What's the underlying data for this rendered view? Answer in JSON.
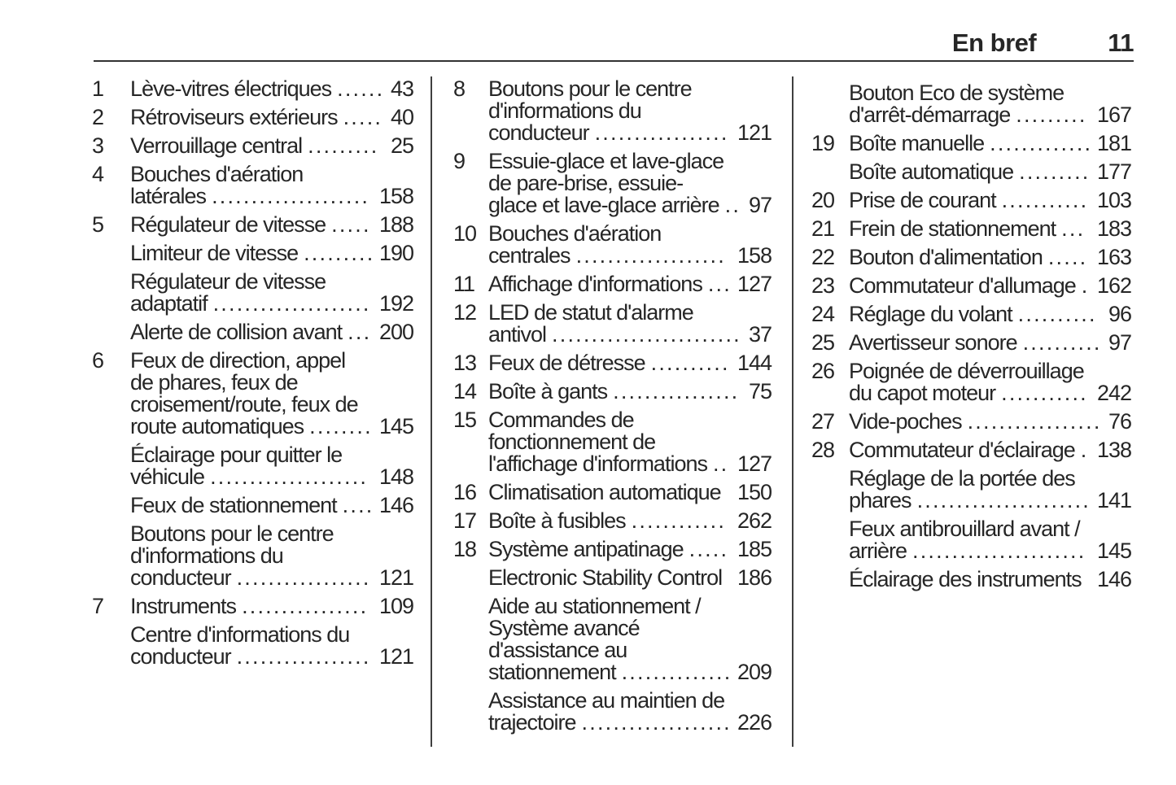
{
  "header": {
    "section_title": "En bref",
    "page_number": "11"
  },
  "colors": {
    "text": "#262626",
    "divider": "#3f3f3f",
    "rule": "#333333",
    "background": "#ffffff"
  },
  "columns": [
    {
      "entries": [
        {
          "num": "1",
          "lines": [
            "Lève-vitres électriques"
          ],
          "page": "43"
        },
        {
          "num": "2",
          "lines": [
            "Rétroviseurs extérieurs"
          ],
          "page": "40"
        },
        {
          "num": "3",
          "lines": [
            "Verrouillage central"
          ],
          "page": "25"
        },
        {
          "num": "4",
          "lines": [
            "Bouches d'aération",
            "latérales"
          ],
          "page": "158"
        },
        {
          "num": "5",
          "lines": [
            "Régulateur de vitesse"
          ],
          "page": "188"
        },
        {
          "num": "",
          "lines": [
            "Limiteur de vitesse"
          ],
          "page": "190"
        },
        {
          "num": "",
          "lines": [
            "Régulateur de vitesse",
            "adaptatif"
          ],
          "page": "192"
        },
        {
          "num": "",
          "lines": [
            "Alerte de collision avant"
          ],
          "page": "200"
        },
        {
          "num": "6",
          "lines": [
            "Feux de direction, appel",
            "de phares, feux de",
            "croisement/route, feux de",
            "route automatiques"
          ],
          "page": "145"
        },
        {
          "num": "",
          "lines": [
            "Éclairage pour quitter le",
            "véhicule"
          ],
          "page": "148"
        },
        {
          "num": "",
          "lines": [
            "Feux de stationnement"
          ],
          "page": "146"
        },
        {
          "num": "",
          "lines": [
            "Boutons pour le centre",
            "d'informations du",
            "conducteur"
          ],
          "page": "121"
        },
        {
          "num": "7",
          "lines": [
            "Instruments"
          ],
          "page": "109"
        },
        {
          "num": "",
          "lines": [
            "Centre d'informations du",
            "conducteur"
          ],
          "page": "121"
        }
      ]
    },
    {
      "entries": [
        {
          "num": "8",
          "lines": [
            "Boutons pour le centre",
            "d'informations du",
            "conducteur"
          ],
          "page": "121"
        },
        {
          "num": "9",
          "lines": [
            "Essuie-glace et lave-glace",
            "de pare-brise, essuie-",
            "glace et lave-glace arrière"
          ],
          "page": "97"
        },
        {
          "num": "10",
          "lines": [
            "Bouches d'aération",
            "centrales"
          ],
          "page": "158"
        },
        {
          "num": "11",
          "lines": [
            "Affichage d'informations"
          ],
          "page": "127"
        },
        {
          "num": "12",
          "lines": [
            "LED de statut d'alarme",
            "antivol"
          ],
          "page": "37"
        },
        {
          "num": "13",
          "lines": [
            "Feux de détresse"
          ],
          "page": "144"
        },
        {
          "num": "14",
          "lines": [
            "Boîte à gants"
          ],
          "page": "75"
        },
        {
          "num": "15",
          "lines": [
            "Commandes de",
            "fonctionnement de",
            "l'affichage d'informations"
          ],
          "page": "127"
        },
        {
          "num": "16",
          "lines": [
            "Climatisation automatique"
          ],
          "page": "150"
        },
        {
          "num": "17",
          "lines": [
            "Boîte à fusibles"
          ],
          "page": "262"
        },
        {
          "num": "18",
          "lines": [
            "Système antipatinage"
          ],
          "page": "185"
        },
        {
          "num": "",
          "lines": [
            "Electronic Stability Control"
          ],
          "page": "186"
        },
        {
          "num": "",
          "lines": [
            "Aide au stationnement /",
            "Système avancé",
            "d'assistance au",
            "stationnement"
          ],
          "page": "209"
        },
        {
          "num": "",
          "lines": [
            "Assistance au maintien de",
            "trajectoire"
          ],
          "page": "226"
        }
      ]
    },
    {
      "entries": [
        {
          "num": "",
          "lines": [
            "Bouton Eco de système",
            "d'arrêt-démarrage"
          ],
          "page": "167"
        },
        {
          "num": "19",
          "lines": [
            "Boîte manuelle"
          ],
          "page": "181"
        },
        {
          "num": "",
          "lines": [
            "Boîte automatique"
          ],
          "page": "177"
        },
        {
          "num": "20",
          "lines": [
            "Prise de courant"
          ],
          "page": "103"
        },
        {
          "num": "21",
          "lines": [
            "Frein de stationnement"
          ],
          "page": "183"
        },
        {
          "num": "22",
          "lines": [
            "Bouton d'alimentation"
          ],
          "page": "163"
        },
        {
          "num": "23",
          "lines": [
            "Commutateur d'allumage"
          ],
          "page": "162"
        },
        {
          "num": "24",
          "lines": [
            "Réglage du volant"
          ],
          "page": "96"
        },
        {
          "num": "25",
          "lines": [
            "Avertisseur sonore"
          ],
          "page": "97"
        },
        {
          "num": "26",
          "lines": [
            "Poignée de déverrouillage",
            "du capot moteur"
          ],
          "page": "242"
        },
        {
          "num": "27",
          "lines": [
            "Vide-poches"
          ],
          "page": "76"
        },
        {
          "num": "28",
          "lines": [
            "Commutateur d'éclairage"
          ],
          "page": "138"
        },
        {
          "num": "",
          "lines": [
            "Réglage de la portée des",
            "phares"
          ],
          "page": "141"
        },
        {
          "num": "",
          "lines": [
            "Feux antibrouillard avant /",
            "arrière"
          ],
          "page": "145"
        },
        {
          "num": "",
          "lines": [
            "Éclairage des instruments"
          ],
          "page": "146"
        }
      ]
    }
  ]
}
